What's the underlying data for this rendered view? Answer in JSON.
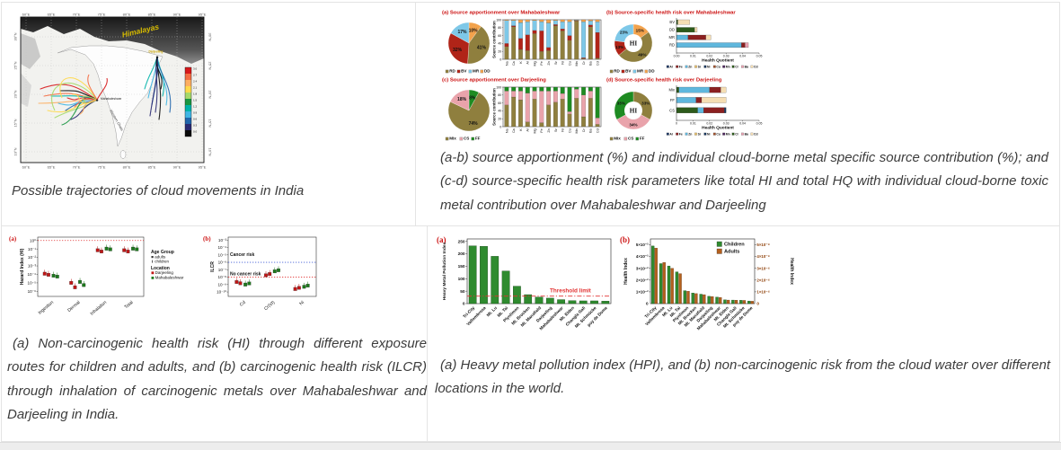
{
  "captions": {
    "map": "Possible trajectories of cloud movements in India",
    "source_health": "(a-b) source apportionment (%) and individual cloud-borne metal specific source contribution (%); and (c-d) source-specific health risk parameters like total HI and total HQ with individual cloud-borne toxic metal contribution over Mahabaleshwar and Darjeeling",
    "risk_routes": "(a) Non-carcinogenic health risk (HI) through different exposure routes for children and adults, and (b) carcinogenic health risk (ILCR) through inhalation of carcinogenic metals over Mahabaleshwar and Darjeeling in India.",
    "hpi_world": "(a) Heavy metal pollution index (HPI), and (b) non-carcinogenic risk from the cloud water over different locations in the world."
  },
  "metals": {
    "order": [
      "Al",
      "Fe",
      "Zn",
      "Sr",
      "Ni",
      "Cu",
      "Mn",
      "Cr",
      "Ba",
      "Cd"
    ],
    "colors": {
      "Al": "#1f3864",
      "Fe": "#8b2020",
      "Zn": "#5fb7dd",
      "Sr": "#e8c06a",
      "Ni": "#17365d",
      "Cu": "#a0522d",
      "Mn": "#4a235a",
      "Cr": "#2d5a1b",
      "Ba": "#e8a0b0",
      "Cd": "#f5deb3"
    }
  },
  "chart_data": [
    {
      "id": "map",
      "type": "map-trajectories",
      "lon_ticks": [
        "60°E",
        "65°E",
        "70°E",
        "75°E",
        "80°E",
        "85°E",
        "90°E",
        "95°E"
      ],
      "lat_ticks": [
        "30°N",
        "25°N",
        "20°N",
        "15°N",
        "10°N"
      ],
      "labels": {
        "range": "Himalayas",
        "site_north": "Darjeeling",
        "site_west": "Mahabaleshwar",
        "coast": "Western Ghats"
      },
      "colorbar": {
        "ticks": [
          "3.0",
          "2.7",
          "2.4",
          "2.1",
          "1.8",
          "1.5",
          "1.2",
          "0.9",
          "0.6",
          "0.3",
          "0.0"
        ],
        "colors": [
          "#d7191c",
          "#f46d43",
          "#fdae61",
          "#ffd94a",
          "#a6d96a",
          "#1a9641",
          "#00b2a9",
          "#41b6e4",
          "#2166ac",
          "#2a2a72",
          "#0a0a0a"
        ]
      }
    },
    {
      "id": "src-mahabaleshwar",
      "type": "pie-columns",
      "title": "(a)  Source apportionment over Mahabaleshwar",
      "title_color": "#cc1111",
      "pie": {
        "slices": [
          {
            "label": "DD",
            "value": 10,
            "color": "#f2a24c"
          },
          {
            "label": "RD",
            "value": 41,
            "color": "#8f7f3e"
          },
          {
            "label": "BV",
            "value": 32,
            "color": "#b02418"
          },
          {
            "label": "MR",
            "value": 17,
            "color": "#7ec8e8"
          }
        ],
        "legend": [
          "RD",
          "BV",
          "MR",
          "DD"
        ]
      },
      "columns": {
        "ylabel": "Source contribution",
        "ymax": 100,
        "yticks": [
          0,
          20,
          40,
          60,
          80,
          100
        ],
        "categories": [
          "Na",
          "Ca",
          "K",
          "Al",
          "Mg",
          "Fe",
          "Zn",
          "Sr",
          "Ni",
          "Cu",
          "Mn",
          "Cr",
          "Ba",
          "Cd"
        ],
        "series": [
          {
            "name": "RD",
            "color": "#8f7f3e",
            "values": [
              32,
              82,
              25,
              22,
              65,
              20,
              22,
              85,
              72,
              48,
              97,
              2,
              82,
              3
            ]
          },
          {
            "name": "BV",
            "color": "#b02418",
            "values": [
              8,
              3,
              28,
              40,
              8,
              52,
              8,
              3,
              5,
              12,
              1,
              2,
              5,
              65
            ]
          },
          {
            "name": "MR",
            "color": "#7ec8e8",
            "values": [
              58,
              13,
              40,
              33,
              25,
              23,
              62,
              10,
              18,
              35,
              1,
              91,
              10,
              27
            ]
          },
          {
            "name": "DD",
            "color": "#f2a24c",
            "values": [
              2,
              2,
              7,
              5,
              2,
              5,
              8,
              2,
              5,
              5,
              1,
              5,
              3,
              5
            ]
          }
        ]
      }
    },
    {
      "id": "risk-mahabaleshwar",
      "type": "donut-hbars",
      "title": "(b)  Source-specific health risk over Mahabaleshwar",
      "title_color": "#cc1111",
      "donut": {
        "center": "HI",
        "slices": [
          {
            "label": "DD",
            "value": 15,
            "color": "#f2a24c"
          },
          {
            "label": "RD",
            "value": 49,
            "color": "#8f7f3e"
          },
          {
            "label": "BV",
            "value": 13,
            "color": "#b02418"
          },
          {
            "label": "MR",
            "value": 23,
            "color": "#7ec8e8"
          }
        ],
        "legend": [
          "RD",
          "BV",
          "MR",
          "DD"
        ]
      },
      "hbars": {
        "xlabel": "Health Quotient",
        "xmax": 0.05,
        "xticks": [
          "0.00",
          "0.01",
          "0.02",
          "0.03",
          "0.04",
          "0.05"
        ],
        "rows": [
          {
            "label": "BV",
            "segments": [
              [
                "Cr",
                0.0008
              ],
              [
                "Cd",
                0.0072
              ]
            ]
          },
          {
            "label": "DD",
            "segments": [
              [
                "Cr",
                0.011
              ],
              [
                "Cd",
                0.0015
              ]
            ]
          },
          {
            "label": "MR",
            "segments": [
              [
                "Zn",
                0.007
              ],
              [
                "Fe",
                0.0108
              ],
              [
                "Cd",
                0.003
              ]
            ]
          },
          {
            "label": "RD",
            "segments": [
              [
                "Zn",
                0.0393
              ],
              [
                "Fe",
                0.0022
              ],
              [
                "Ba",
                0.002
              ]
            ]
          }
        ]
      }
    },
    {
      "id": "src-darjeeling",
      "type": "pie-columns",
      "title": "(c)  Source apportionment over Darjeeling",
      "title_color": "#cc1111",
      "pie": {
        "slices": [
          {
            "label": "FF",
            "value": 8,
            "color": "#1e8b22"
          },
          {
            "label": "Mix",
            "value": 74,
            "color": "#8f7f3e"
          },
          {
            "label": "CS",
            "value": 18,
            "color": "#e9a3ab"
          }
        ],
        "legend": [
          "Mix",
          "CS",
          "FF"
        ]
      },
      "columns": {
        "ylabel": "Source contribution",
        "ymax": 100,
        "yticks": [
          0,
          20,
          40,
          60,
          80,
          100
        ],
        "categories": [
          "Na",
          "Ca",
          "K",
          "Al",
          "Mg",
          "Fe",
          "Zn",
          "Sr",
          "Ni",
          "Cu",
          "Mn",
          "Cr",
          "Ba",
          "Cd"
        ],
        "series": [
          {
            "name": "Mix",
            "color": "#8f7f3e",
            "values": [
              55,
              75,
              68,
              12,
              70,
              10,
              55,
              62,
              70,
              32,
              72,
              25,
              72,
              6
            ]
          },
          {
            "name": "CS",
            "color": "#e9a3ab",
            "values": [
              35,
              15,
              22,
              73,
              20,
              80,
              35,
              28,
              14,
              6,
              23,
              55,
              18,
              16
            ]
          },
          {
            "name": "FF",
            "color": "#1e8b22",
            "values": [
              10,
              10,
              10,
              15,
              10,
              10,
              10,
              10,
              16,
              62,
              5,
              20,
              10,
              78
            ]
          }
        ]
      }
    },
    {
      "id": "risk-darjeeling",
      "type": "donut-hbars",
      "title": "(d)  Source-specific health risk over Darjeeling",
      "title_color": "#cc1111",
      "donut": {
        "center": "HI",
        "slices": [
          {
            "label": "Mix",
            "value": 33,
            "color": "#8f7f3e"
          },
          {
            "label": "CS",
            "value": 34,
            "color": "#e9a3ab"
          },
          {
            "label": "FF",
            "value": 33,
            "color": "#1e8b22"
          }
        ],
        "legend": [
          "Mix",
          "CS",
          "FF"
        ]
      },
      "hbars": {
        "xlabel": "Health Quotient",
        "xmax": 0.05,
        "xticks": [
          "0",
          "0.01",
          "0.02",
          "0.03",
          "0.04",
          "0.05"
        ],
        "rows": [
          {
            "label": "Mix",
            "segments": [
              [
                "Cr",
                0.0015
              ],
              [
                "Zn",
                0.0185
              ],
              [
                "Fe",
                0.0068
              ],
              [
                "Cd",
                0.0032
              ]
            ]
          },
          {
            "label": "FF",
            "segments": [
              [
                "Zn",
                0.0118
              ],
              [
                "Fe",
                0.0034
              ],
              [
                "Cd",
                0.0148
              ]
            ]
          },
          {
            "label": "CS",
            "segments": [
              [
                "Cr",
                0.0128
              ],
              [
                "Zn",
                0.0036
              ],
              [
                "Fe",
                0.0126
              ],
              [
                "Ni",
                0.001
              ]
            ]
          }
        ]
      }
    },
    {
      "id": "hazard-index",
      "type": "scatter-log",
      "tag": "(a)",
      "ylabel": "Hazard Index (HI)",
      "ytick_exponents": [
        0,
        -1,
        -2,
        -3,
        -4,
        -5,
        -6
      ],
      "reference_lines": [
        {
          "exponent": 0,
          "color": "#e03030"
        }
      ],
      "categories": [
        "Ingestion",
        "Dermal",
        "Inhalation",
        "Total"
      ],
      "series_colors": {
        "darjeeling": "#c11616",
        "mahabaleshwar": "#1d7a1d"
      },
      "points": [
        {
          "category": "Ingestion",
          "darjeeling": [
            0.00012,
            9e-05
          ],
          "mahabaleshwar": [
            7e-05,
            5.5e-05
          ]
        },
        {
          "category": "Dermal",
          "darjeeling": [
            1e-05,
            3e-06
          ],
          "mahabaleshwar": [
            1.3e-05,
            5.5e-06
          ]
        },
        {
          "category": "Inhalation",
          "darjeeling": [
            0.07,
            0.05
          ],
          "mahabaleshwar": [
            0.11,
            0.09
          ]
        },
        {
          "category": "Total",
          "darjeeling": [
            0.07,
            0.05
          ],
          "mahabaleshwar": [
            0.11,
            0.09
          ]
        }
      ],
      "legend": {
        "age_title": "Age Group",
        "age_items": [
          "adults",
          "children"
        ],
        "loc_title": "Location",
        "loc_items": [
          {
            "label": "Darjeeling",
            "color": "#c11616"
          },
          {
            "label": "Mahabaleshwar",
            "color": "#1d7a1d"
          }
        ]
      }
    },
    {
      "id": "ilcr",
      "type": "scatter-log",
      "tag": "(b)",
      "ylabel": "ILCR",
      "ytick_exponents": [
        -3,
        -4,
        -5,
        -6,
        -7,
        -8,
        -9,
        -10
      ],
      "reference_lines": [
        {
          "exponent": -6,
          "color": "#4a63d8",
          "label": "Cancer risk"
        },
        {
          "exponent": -8,
          "color": "#e03030",
          "label": "No cancer risk"
        }
      ],
      "categories": [
        "Cd",
        "Cr(VI)",
        "Ni"
      ],
      "series_colors": {
        "darjeeling": "#c11616",
        "mahabaleshwar": "#1d7a1d"
      },
      "points": [
        {
          "category": "Cd",
          "darjeeling": [
            2.2e-09,
            1.5e-09
          ],
          "mahabaleshwar": [
            1e-09,
            1.4e-09
          ]
        },
        {
          "category": "Cr(VI)",
          "darjeeling": [
            1.8e-08,
            2.6e-08
          ],
          "mahabaleshwar": [
            6e-08,
            8.5e-08
          ]
        },
        {
          "category": "Ni",
          "darjeeling": [
            2.5e-10,
            3.6e-10
          ],
          "mahabaleshwar": [
            5e-10,
            7.2e-10
          ]
        }
      ]
    },
    {
      "id": "hpi",
      "type": "bar",
      "tag": "(a)",
      "ylabel": "Heavy Metal Pollution Index",
      "yticks": [
        0,
        50,
        100,
        150,
        200,
        250
      ],
      "ymax": 260,
      "bar_color": "#2f8b2f",
      "threshold": {
        "value": 30,
        "label": "Threshold limit",
        "color": "#e23333"
      },
      "categories": [
        "Tri-City",
        "Vallombrosa",
        "Mt. Lu",
        "Mt. Tai",
        "Plynlimon",
        "Mt. Brocken",
        "Mt. Mansfield",
        "Darjeeling",
        "Mahabaleshwar",
        "Mt. Elden",
        "Changla Gali",
        "Mt. Schmücke",
        "puy de Dome"
      ],
      "values": [
        232,
        230,
        190,
        131,
        70,
        36,
        26,
        22,
        16,
        12,
        11,
        11,
        10
      ]
    },
    {
      "id": "health-index",
      "type": "grouped-bar",
      "tag": "(b)",
      "ylabel_left": "Health Index",
      "ylabel_right": "Health Index",
      "ytick_coefs": [
        1,
        2,
        3,
        4,
        5
      ],
      "left_exponent": -2,
      "right_exponent": -4,
      "ymax": 5.5,
      "right_tick_color": "#8b3a00",
      "categories": [
        "Tri-City",
        "Vallombrosa",
        "Mt. Lu",
        "Mt. Tai",
        "Plynlimon",
        "Mt. Brocken",
        "Mt. Mansfield",
        "Darjeeling",
        "Mahabaleshwar",
        "Mt. Elden",
        "Changla Gali",
        "Mt. Schmücke",
        "puy de Dome"
      ],
      "series": [
        {
          "name": "Children",
          "color": "#2f8b2f",
          "values": [
            4.9,
            3.4,
            3.2,
            2.7,
            1.1,
            0.9,
            0.8,
            0.62,
            0.55,
            0.32,
            0.3,
            0.28,
            0.22
          ]
        },
        {
          "name": "Adults",
          "color": "#b4601e",
          "values": [
            4.72,
            3.5,
            3.0,
            2.55,
            1.05,
            0.85,
            0.76,
            0.6,
            0.52,
            0.3,
            0.29,
            0.27,
            0.2
          ]
        }
      ]
    }
  ]
}
